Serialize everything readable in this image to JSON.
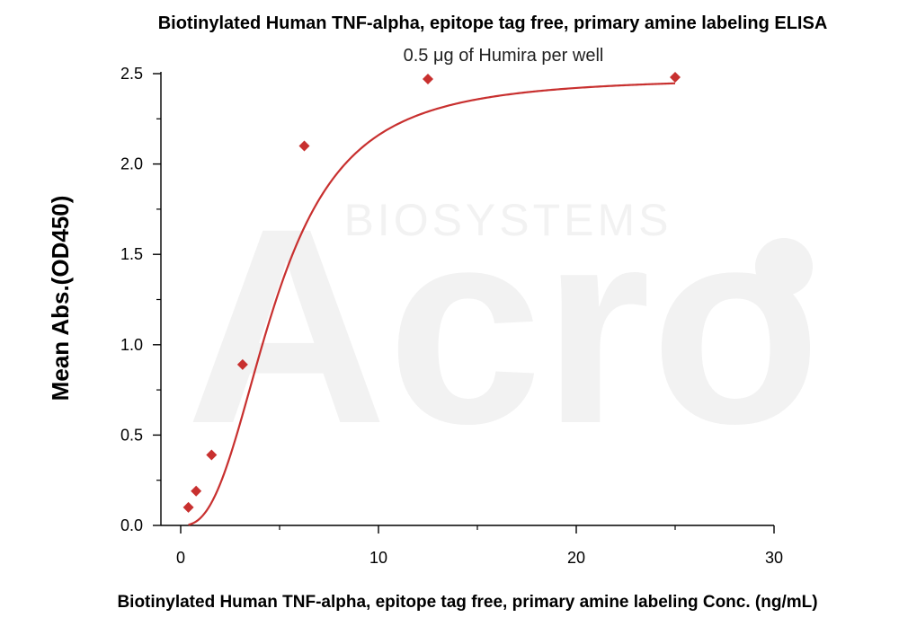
{
  "chart_data": {
    "type": "scatter",
    "title": "Biotinylated Human TNF-alpha, epitope tag free, primary amine labeling ELISA",
    "subtitle": "0.5 μg of Humira per well",
    "xlabel": "Biotinylated Human TNF-alpha, epitope tag free, primary amine labeling Conc. (ng/mL)",
    "ylabel": "Mean Abs.(OD450)",
    "xlim": [
      -1,
      30
    ],
    "ylim": [
      0,
      2.5
    ],
    "x_ticks": [
      "0",
      "10",
      "20",
      "30"
    ],
    "y_ticks": [
      "0.0",
      "0.5",
      "1.0",
      "1.5",
      "2.0",
      "2.5"
    ],
    "grid": false,
    "series": [
      {
        "marker": "diamond",
        "color": "#c8302f",
        "points": [
          {
            "x": 0.39,
            "y": 0.1
          },
          {
            "x": 0.78,
            "y": 0.19
          },
          {
            "x": 1.56,
            "y": 0.39
          },
          {
            "x": 3.13,
            "y": 0.89
          },
          {
            "x": 6.25,
            "y": 2.1
          },
          {
            "x": 12.5,
            "y": 2.47
          },
          {
            "x": 25.0,
            "y": 2.48
          }
        ],
        "fit_curve": {
          "model": "4PL",
          "bottom": 0.0,
          "top": 2.48,
          "ec50": 4.8,
          "hill": 2.6
        }
      }
    ],
    "watermark": {
      "text": "Acro",
      "subtext": "BIOSYSTEMS",
      "color": "#f2f2f2"
    }
  }
}
